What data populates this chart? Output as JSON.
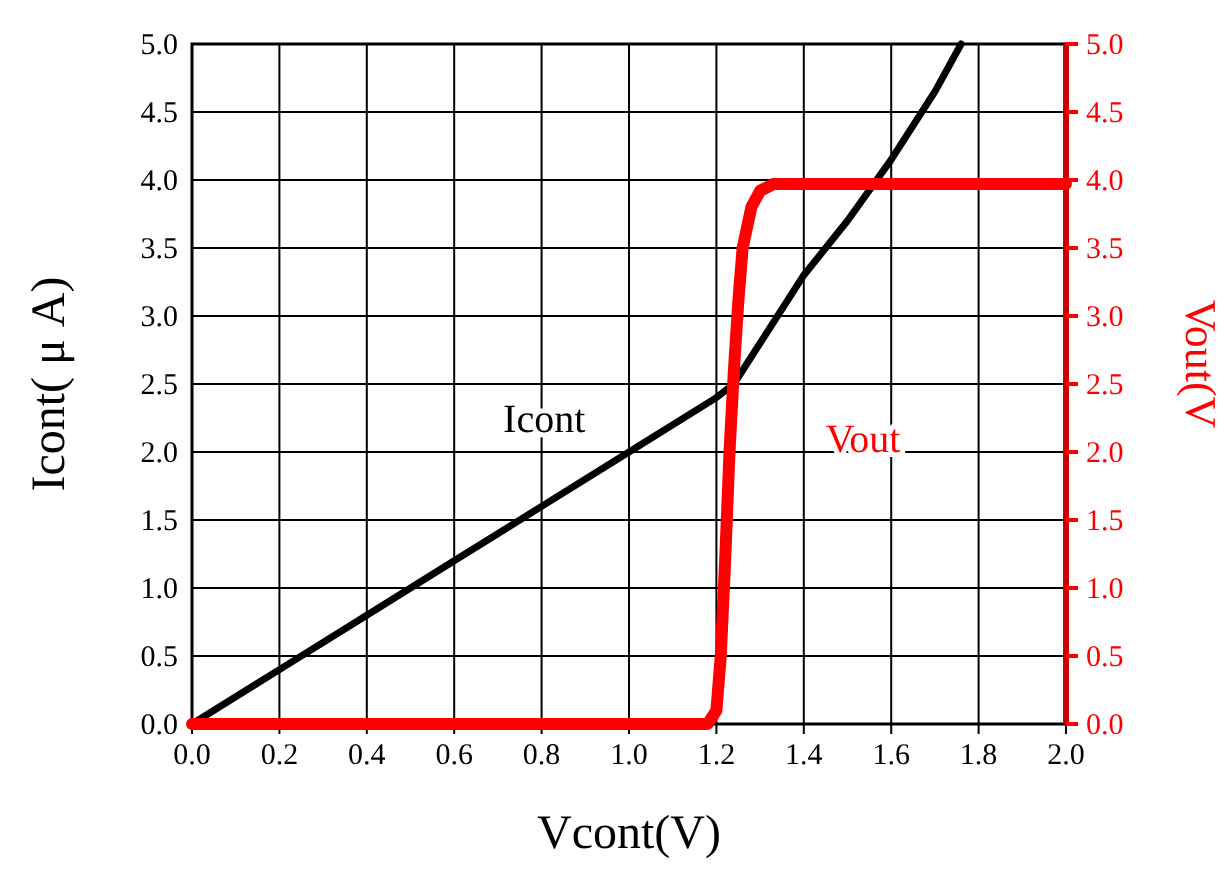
{
  "chart_data": {
    "type": "line",
    "xlabel": "Vcont(V)",
    "ylabel": "Icont( μ A)",
    "y2label": "Vout(V",
    "xlim": [
      0,
      2
    ],
    "xticks": [
      {
        "value": 0,
        "label": "0.0"
      },
      {
        "value": 0.2,
        "label": "0.2"
      },
      {
        "value": 0.4,
        "label": "0.4"
      },
      {
        "value": 0.6,
        "label": "0.6"
      },
      {
        "value": 0.8,
        "label": "0.8"
      },
      {
        "value": 1,
        "label": "1.0"
      },
      {
        "value": 1.2,
        "label": "1.2"
      },
      {
        "value": 1.4,
        "label": "1.4"
      },
      {
        "value": 1.6,
        "label": "1.6"
      },
      {
        "value": 1.8,
        "label": "1.8"
      },
      {
        "value": 2,
        "label": "2.0"
      }
    ],
    "ylim": [
      0,
      5
    ],
    "yticks": [
      {
        "value": 0,
        "label": "0.0"
      },
      {
        "value": 0.5,
        "label": "0.5"
      },
      {
        "value": 1,
        "label": "1.0"
      },
      {
        "value": 1.5,
        "label": "1.5"
      },
      {
        "value": 2,
        "label": "2.0"
      },
      {
        "value": 2.5,
        "label": "2.5"
      },
      {
        "value": 3,
        "label": "3.0"
      },
      {
        "value": 3.5,
        "label": "3.5"
      },
      {
        "value": 4,
        "label": "4.0"
      },
      {
        "value": 4.5,
        "label": "4.5"
      },
      {
        "value": 5,
        "label": "5.0"
      }
    ],
    "y2lim": [
      0,
      5
    ],
    "y2ticks": [
      {
        "value": 0,
        "label": "0.0"
      },
      {
        "value": 0.5,
        "label": "0.5"
      },
      {
        "value": 1,
        "label": "1.0"
      },
      {
        "value": 1.5,
        "label": "1.5"
      },
      {
        "value": 2,
        "label": "2.0"
      },
      {
        "value": 2.5,
        "label": "2.5"
      },
      {
        "value": 3,
        "label": "3.0"
      },
      {
        "value": 3.5,
        "label": "3.5"
      },
      {
        "value": 4,
        "label": "4.0"
      },
      {
        "value": 4.5,
        "label": "4.5"
      },
      {
        "value": 5,
        "label": "5.0"
      }
    ],
    "grid": true,
    "marker": "none",
    "line_style": "solid",
    "series": [
      {
        "name": "Icont",
        "color": "#000000",
        "x": [
          0,
          0.2,
          0.4,
          0.6,
          0.8,
          1.0,
          1.2,
          1.24,
          1.3,
          1.4,
          1.5,
          1.6,
          1.7,
          1.76
        ],
        "values": [
          0,
          0.4,
          0.8,
          1.2,
          1.6,
          2.0,
          2.4,
          2.5,
          2.8,
          3.3,
          3.7,
          4.15,
          4.65,
          5.0
        ]
      },
      {
        "name": "Vout",
        "color": "#ff0000",
        "axis": "y2",
        "x": [
          0,
          1.18,
          1.2,
          1.21,
          1.22,
          1.23,
          1.24,
          1.25,
          1.26,
          1.28,
          1.3,
          1.33,
          1.4,
          2.0
        ],
        "values": [
          0,
          0,
          0.1,
          0.5,
          1.2,
          2.0,
          2.6,
          3.1,
          3.5,
          3.8,
          3.92,
          3.97,
          3.97,
          3.97
        ]
      }
    ]
  }
}
